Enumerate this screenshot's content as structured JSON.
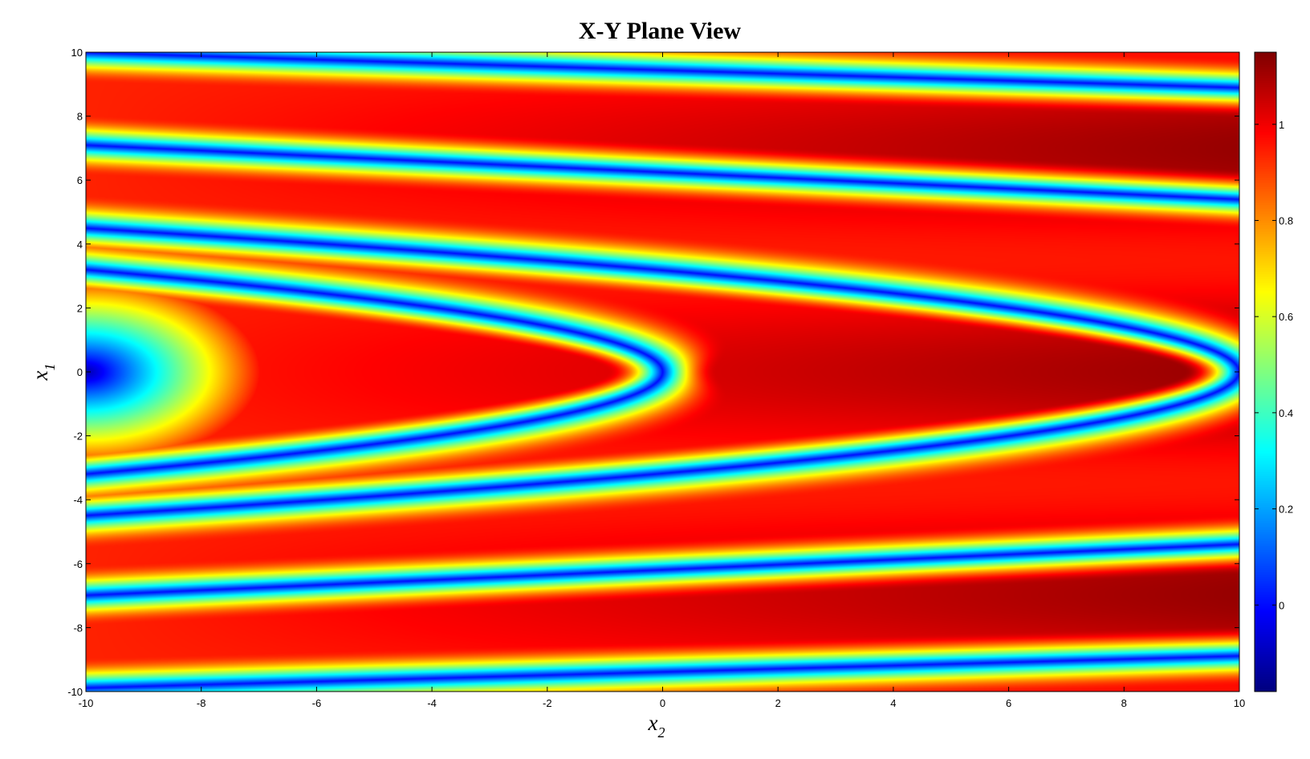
{
  "chart_data": {
    "type": "heatmap",
    "title": "X-Y Plane View",
    "xlabel": {
      "base": "x",
      "subscript": "2"
    },
    "ylabel": {
      "base": "x",
      "subscript": "1"
    },
    "xlim": [
      -10,
      10
    ],
    "ylim": [
      -10,
      10
    ],
    "x_ticks": [
      "-10",
      "-8",
      "-6",
      "-4",
      "-2",
      "0",
      "2",
      "4",
      "6",
      "8",
      "10"
    ],
    "y_ticks": [
      "10",
      "8",
      "6",
      "4",
      "2",
      "0",
      "-2",
      "-4",
      "-6",
      "-8",
      "-10"
    ],
    "colorbar": {
      "colormap": "jet",
      "range": [
        -0.18,
        1.15
      ],
      "ticks": [
        "1",
        "0.8",
        "0.6",
        "0.4",
        "0.2",
        "0"
      ]
    },
    "zero_contours": [
      {
        "vertex_x2": 0.0,
        "vertex_x1": 0.0,
        "edge_x1_at_x2_neg10": 3.2
      },
      {
        "vertex_x2": 10.0,
        "vertex_x1": 0.0,
        "edge_x1_at_x2_neg10": 4.5
      },
      {
        "x1_at_x2_neg10": 7.1,
        "x1_at_x2_pos10": 5.4
      },
      {
        "x1_at_x2_neg10": 10.0,
        "x1_at_x2_pos10": 8.9
      },
      {
        "x1_at_x2_neg10": -7.0,
        "x1_at_x2_pos10": -5.4
      },
      {
        "x1_at_x2_neg10": -9.9,
        "x1_at_x2_pos10": -8.9
      }
    ]
  }
}
